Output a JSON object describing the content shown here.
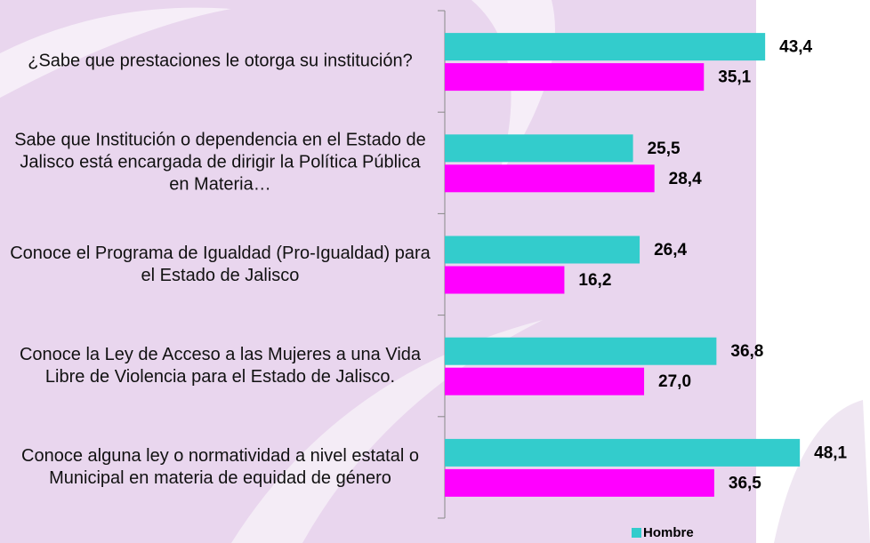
{
  "chart_data": {
    "type": "hbar",
    "categories": [
      "¿Sabe que prestaciones le otorga su institución?",
      "Sabe que Institución o dependencia en el Estado de Jalisco está encargada de dirigir la Política Pública en Materia…",
      "Conoce el Programa de Igualdad (Pro-Igualdad) para el Estado de Jalisco",
      "Conoce la Ley de Acceso a las Mujeres a una Vida Libre de Violencia para el Estado de Jalisco.",
      "Conoce alguna ley o normatividad a nivel estatal o Municipal en materia de equidad de género"
    ],
    "series": [
      {
        "name": "Hombre",
        "color": "#33cccc",
        "values": [
          43.4,
          25.5,
          26.4,
          36.8,
          48.1
        ],
        "value_labels": [
          "43,4",
          "25,5",
          "26,4",
          "36,8",
          "48,1"
        ]
      },
      {
        "color": "#ff00ff",
        "values": [
          35.1,
          28.4,
          16.2,
          27.0,
          36.5
        ],
        "value_labels": [
          "35,1",
          "28,4",
          "16,2",
          "27,0",
          "36,5"
        ]
      }
    ],
    "xlim": [
      0,
      57
    ],
    "legend": "bottom"
  }
}
